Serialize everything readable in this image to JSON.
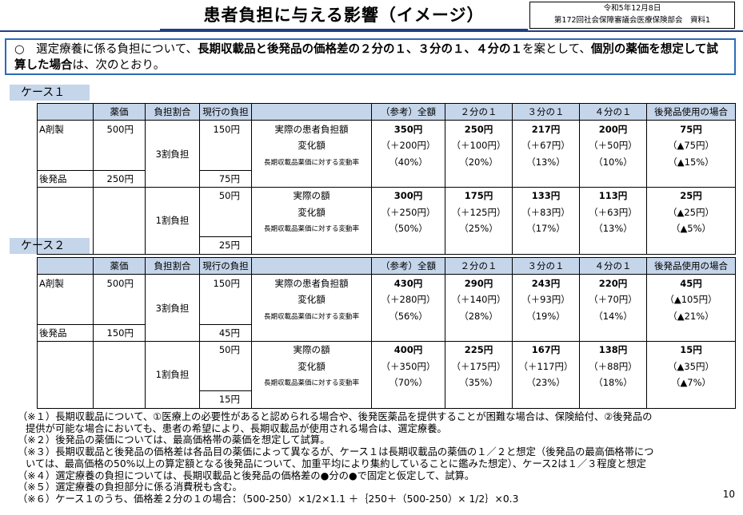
{
  "header": {
    "title": "患者負担に与える影響（イメージ）",
    "meta_line1": "令和5年12月8日",
    "meta_line2": "第172回社会保障審議会医療保険部会　資料1"
  },
  "intro": {
    "bullet": "○",
    "part1": "　選定療養に係る負担について、",
    "bold1": "長期収載品と後発品の価格差の２分の１、３分の１、４分の１",
    "part2": "を案として、",
    "bold2": "個別の薬価を想定して試算した場合",
    "part3": "は、次のとおり。"
  },
  "cases": [
    {
      "label": "ケース１",
      "headers": [
        "",
        "薬価",
        "負担割合",
        "現行の負担",
        "",
        "（参考）全額",
        "２分の１",
        "３分の１",
        "４分の１",
        "後発品使用の場合"
      ],
      "drug_a": {
        "name": "A剤製",
        "price": "500円"
      },
      "generic": {
        "name": "後発品",
        "price": "250円"
      },
      "block3": {
        "ratio": "3割負担",
        "current_a": "150円",
        "current_g": "75円",
        "row_labels": [
          "実際の患者負担額",
          "変化額",
          "長期収載品薬価に対する変動率"
        ],
        "values": [
          [
            "350円",
            "250円",
            "217円",
            "200円",
            "75円"
          ],
          [
            "（＋200円）",
            "（＋100円）",
            "（＋67円）",
            "（＋50円）",
            "（▲75円）"
          ],
          [
            "（40%）",
            "（20%）",
            "（13%）",
            "（10%）",
            "（▲15%）"
          ]
        ]
      },
      "block1": {
        "ratio": "1割負担",
        "current_a": "50円",
        "current_g": "25円",
        "row_labels": [
          "実際の額",
          "変化額",
          "長期収載品薬価に対する変動率"
        ],
        "values": [
          [
            "300円",
            "175円",
            "133円",
            "113円",
            "25円"
          ],
          [
            "（＋250円）",
            "（＋125円）",
            "（＋83円）",
            "（＋63円）",
            "（▲25円）"
          ],
          [
            "（50%）",
            "（25%）",
            "（17%）",
            "（13%）",
            "（▲5%）"
          ]
        ]
      }
    },
    {
      "label": "ケース２",
      "headers": [
        "",
        "薬価",
        "負担割合",
        "現行の負担",
        "",
        "（参考）全額",
        "２分の１",
        "３分の１",
        "４分の１",
        "後発品使用の場合"
      ],
      "drug_a": {
        "name": "A剤製",
        "price": "500円"
      },
      "generic": {
        "name": "後発品",
        "price": "150円"
      },
      "block3": {
        "ratio": "3割負担",
        "current_a": "150円",
        "current_g": "45円",
        "row_labels": [
          "実際の患者負担額",
          "変化額",
          "長期収載品薬価に対する変動率"
        ],
        "values": [
          [
            "430円",
            "290円",
            "243円",
            "220円",
            "45円"
          ],
          [
            "（＋280円）",
            "（＋140円）",
            "（＋93円）",
            "（＋70円）",
            "（▲105円）"
          ],
          [
            "（56%）",
            "（28%）",
            "（19%）",
            "（14%）",
            "（▲21%）"
          ]
        ]
      },
      "block1": {
        "ratio": "1割負担",
        "current_a": "50円",
        "current_g": "15円",
        "row_labels": [
          "実際の額",
          "変化額",
          "長期収載品薬価に対する変動率"
        ],
        "values": [
          [
            "400円",
            "225円",
            "167円",
            "138円",
            "15円"
          ],
          [
            "（＋350円）",
            "（＋175円）",
            "（＋117円）",
            "（＋88円）",
            "（▲35円）"
          ],
          [
            "（70%）",
            "（35%）",
            "（23%）",
            "（18%）",
            "（▲7%）"
          ]
        ]
      }
    }
  ],
  "notes": [
    "（※１）長期収載品について、①医療上の必要性があると認められる場合や、後発医薬品を提供することが困難な場合は、保険給付、②後発品の",
    "提供が可能な場合においても、患者の希望により、長期収載品が使用される場合は、選定療養。",
    "（※２）後発品の薬価については、最高価格帯の薬価を想定して試算。",
    "（※３）長期収載品と後発品の価格差は各品目の薬価によって異なるが、ケース１は長期収載品の薬価の１／２と想定（後発品の最高価格帯につ",
    "いては、最高価格の50%以上の算定額となる後発品について、加重平均により集約していることに鑑みた想定）、ケース2は１／３程度と想定",
    "（※４）選定療養の負担については、長期収載品と後発品の価格差の●分の●で固定と仮定して、試算。",
    "（※５）選定療養の負担部分に係る消費税も含む。",
    "（※６）ケース１のうち、価格差２分の１の場合：（500-250）×1/2×1.1 ＋｛250＋（500-250）× 1/2｝×0.3"
  ],
  "page_number": "10"
}
